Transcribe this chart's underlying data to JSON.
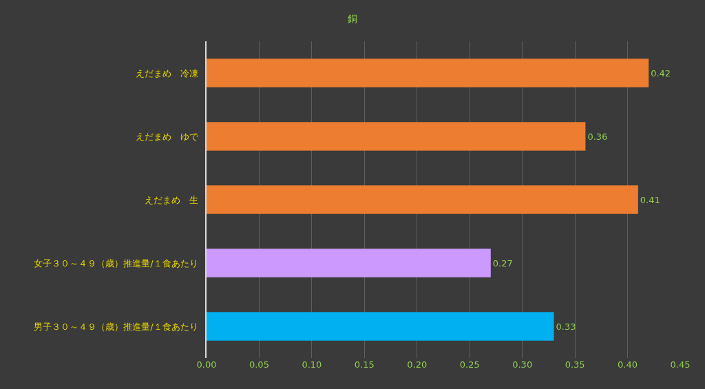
{
  "chart_data": {
    "type": "bar",
    "orientation": "horizontal",
    "title": "銅",
    "categories": [
      "えだまめ　冷凍",
      "えだまめ　ゆで",
      "えだまめ　生",
      "女子３０～４９（歳）推進量/１食あたり",
      "男子３０～４９（歳）推進量/１食あたり"
    ],
    "values": [
      0.42,
      0.36,
      0.41,
      0.27,
      0.33
    ],
    "colors": [
      "#ed7d31",
      "#ed7d31",
      "#ed7d31",
      "#cc99ff",
      "#00b0f0"
    ],
    "xlim": [
      0,
      0.45
    ],
    "xticks": [
      {
        "value": 0,
        "label": "0.00"
      },
      {
        "value": 0.05,
        "label": "0.05"
      },
      {
        "value": 0.1,
        "label": "0.10"
      },
      {
        "value": 0.15,
        "label": "0.15"
      },
      {
        "value": 0.2,
        "label": "0.20"
      },
      {
        "value": 0.25,
        "label": "0.25"
      },
      {
        "value": 0.3,
        "label": "0.30"
      },
      {
        "value": 0.35,
        "label": "0.35"
      },
      {
        "value": 0.4,
        "label": "0.40"
      },
      {
        "value": 0.45,
        "label": "0.45"
      }
    ],
    "grid": "x",
    "data_labels": true
  }
}
